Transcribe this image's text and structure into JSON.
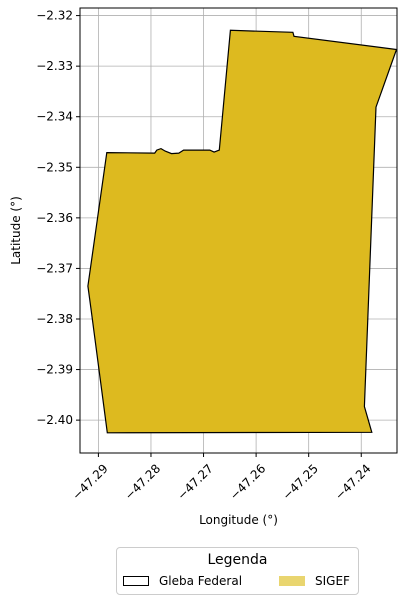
{
  "chart_data": {
    "type": "map",
    "xlabel": "Longitude (°)",
    "ylabel": "Latitude (°)",
    "xlim": [
      -47.2935,
      -47.2332
    ],
    "ylim": [
      -2.4065,
      -2.3185
    ],
    "xticks": [
      -47.29,
      -47.28,
      -47.27,
      -47.26,
      -47.25,
      -47.24
    ],
    "xtick_labels": [
      "−47.29",
      "−47.28",
      "−47.27",
      "−47.26",
      "−47.25",
      "−47.24"
    ],
    "yticks": [
      -2.32,
      -2.33,
      -2.34,
      -2.35,
      -2.36,
      -2.37,
      -2.38,
      -2.39,
      -2.4
    ],
    "ytick_labels": [
      "−2.32",
      "−2.33",
      "−2.34",
      "−2.35",
      "−2.36",
      "−2.37",
      "−2.38",
      "−2.39",
      "−2.40"
    ],
    "grid": true,
    "series": [
      {
        "name": "Gleba Federal",
        "style": "outline",
        "color": "#000000",
        "polygon": [
          [
            -47.2884,
            -2.3471
          ],
          [
            -47.2793,
            -2.3472
          ],
          [
            -47.2789,
            -2.3466
          ],
          [
            -47.2781,
            -2.3463
          ],
          [
            -47.2773,
            -2.3468
          ],
          [
            -47.2761,
            -2.3473
          ],
          [
            -47.2747,
            -2.3472
          ],
          [
            -47.2738,
            -2.3466
          ],
          [
            -47.2688,
            -2.3466
          ],
          [
            -47.268,
            -2.347
          ],
          [
            -47.267,
            -2.3466
          ],
          [
            -47.2649,
            -2.3229
          ],
          [
            -47.253,
            -2.3233
          ],
          [
            -47.2528,
            -2.3241
          ],
          [
            -47.2333,
            -2.3267
          ],
          [
            -47.2372,
            -2.3381
          ],
          [
            -47.2394,
            -2.3973
          ],
          [
            -47.238,
            -2.4024
          ],
          [
            -47.2883,
            -2.4025
          ],
          [
            -47.2914,
            -2.378
          ],
          [
            -47.292,
            -2.3735
          ],
          [
            -47.2884,
            -2.3471
          ]
        ]
      },
      {
        "name": "SIGEF",
        "style": "fill",
        "color": "#DDBA1F",
        "polygon": [
          [
            -47.2884,
            -2.3471
          ],
          [
            -47.2793,
            -2.3472
          ],
          [
            -47.2789,
            -2.3466
          ],
          [
            -47.2781,
            -2.3463
          ],
          [
            -47.2773,
            -2.3468
          ],
          [
            -47.2761,
            -2.3473
          ],
          [
            -47.2747,
            -2.3472
          ],
          [
            -47.2738,
            -2.3466
          ],
          [
            -47.2688,
            -2.3466
          ],
          [
            -47.268,
            -2.347
          ],
          [
            -47.267,
            -2.3466
          ],
          [
            -47.2649,
            -2.3229
          ],
          [
            -47.253,
            -2.3233
          ],
          [
            -47.2528,
            -2.3241
          ],
          [
            -47.2333,
            -2.3267
          ],
          [
            -47.2372,
            -2.3381
          ],
          [
            -47.2394,
            -2.3973
          ],
          [
            -47.238,
            -2.4024
          ],
          [
            -47.2883,
            -2.4025
          ],
          [
            -47.2914,
            -2.378
          ],
          [
            -47.292,
            -2.3735
          ],
          [
            -47.2884,
            -2.3471
          ]
        ]
      }
    ]
  },
  "legend": {
    "title": "Legenda",
    "entries": [
      {
        "label": "Gleba Federal",
        "style": "outline"
      },
      {
        "label": "SIGEF",
        "style": "fill",
        "color": "#E9D56F"
      }
    ]
  }
}
